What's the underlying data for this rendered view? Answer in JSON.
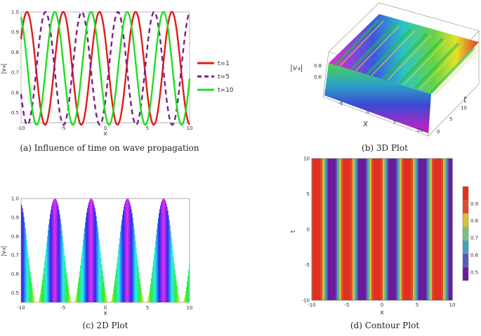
{
  "captions": {
    "a": "(a) Influence of time on wave propagation",
    "b": "(b) 3D Plot",
    "c": "(c) 2D Plot",
    "d": "(d) Contour Plot"
  },
  "chart_data": [
    {
      "id": "a",
      "type": "line",
      "xlabel": "x",
      "ylabel": "|v₄|",
      "xlim": [
        -10,
        10
      ],
      "ylim": [
        0.45,
        1.0
      ],
      "xticks": [
        "-10",
        "-5",
        "0",
        "5",
        "10"
      ],
      "yticks": [
        "0.5",
        "0.6",
        "0.7",
        "0.8",
        "0.9",
        "1.0"
      ],
      "legend_position": "right",
      "series": [
        {
          "name": "t=1",
          "color": "#e01b1b",
          "dash": "solid",
          "peaks_x": [
            -9.3,
            -5.0,
            -0.7,
            3.5,
            7.8
          ]
        },
        {
          "name": "t=5",
          "color": "#7b1f86",
          "dash": "dashed",
          "peaks_x": [
            -7.1,
            -2.8,
            1.5,
            5.7,
            10.0
          ]
        },
        {
          "name": "t=10",
          "color": "#22dd22",
          "dash": "solid",
          "peaks_x": [
            -10.3,
            -6.0,
            -1.7,
            2.6,
            6.9
          ]
        }
      ],
      "wave": {
        "min": 0.44,
        "max": 1.0,
        "period": 4.3
      }
    },
    {
      "id": "b",
      "type": "surface",
      "xlabel": "x",
      "ylabel": "t",
      "zlabel": "|v₄|",
      "xticks": [
        "-5",
        "0",
        "5",
        "10"
      ],
      "tticks": [
        "0",
        "5",
        "10"
      ],
      "zticks": [
        "0.6",
        "0.8"
      ]
    },
    {
      "id": "c",
      "type": "area",
      "xlabel": "x",
      "ylabel": "|v₄|",
      "xlim": [
        -10,
        10
      ],
      "ylim": [
        0.45,
        1.0
      ],
      "xticks": [
        "-10",
        "-5",
        "0",
        "5",
        "10"
      ],
      "yticks": [
        "0.5",
        "0.6",
        "0.7",
        "0.8",
        "0.9",
        "1.0"
      ],
      "peaks_x": [
        -10.3,
        -6.0,
        -1.7,
        2.6,
        6.9
      ],
      "wave": {
        "min": 0.44,
        "max": 1.0,
        "period": 4.3
      }
    },
    {
      "id": "d",
      "type": "heatmap",
      "xlabel": "x",
      "ylabel": "t",
      "xlim": [
        -10,
        10
      ],
      "ylim": [
        -10,
        10
      ],
      "xticks": [
        "-10",
        "-5",
        "0",
        "5",
        "10"
      ],
      "yticks": [
        "-10",
        "-5",
        "0",
        "5",
        "10"
      ],
      "colorbar_ticks": [
        "0.5",
        "0.6",
        "0.7",
        "0.8",
        "0.9"
      ],
      "colorbar_range": [
        0.45,
        1.0
      ],
      "peaks_x": [
        -9.3,
        -5.0,
        -0.7,
        3.5,
        7.8
      ],
      "wave": {
        "min": 0.44,
        "max": 1.0,
        "period": 4.3
      }
    }
  ]
}
